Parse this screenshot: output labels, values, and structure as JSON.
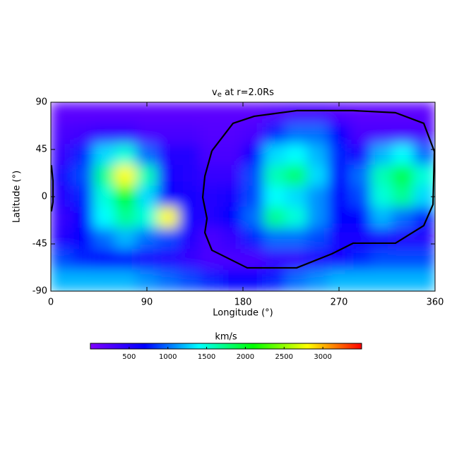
{
  "chart_data": {
    "type": "heatmap",
    "title": "v",
    "title_subscript": "e",
    "title_suffix": " at r=2.0Rs",
    "x_label": "Longitude (°)",
    "y_label": "Latitude (°)",
    "xlim": [
      0,
      360
    ],
    "ylim": [
      -90,
      90
    ],
    "xticks": [
      0,
      90,
      180,
      270,
      360
    ],
    "yticks": [
      -90,
      -45,
      0,
      45,
      90
    ],
    "x": [
      10,
      30,
      50,
      70,
      90,
      110,
      130,
      150,
      170,
      190,
      210,
      230,
      250,
      270,
      290,
      310,
      330,
      350
    ],
    "y": [
      80,
      60,
      40,
      20,
      0,
      -20,
      -40,
      -60,
      -80
    ],
    "z": [
      [
        200,
        200,
        200,
        200,
        200,
        200,
        200,
        200,
        200,
        200,
        250,
        300,
        300,
        250,
        200,
        200,
        200,
        200
      ],
      [
        300,
        350,
        400,
        400,
        300,
        300,
        300,
        250,
        250,
        300,
        800,
        1000,
        1000,
        700,
        300,
        300,
        300,
        300
      ],
      [
        400,
        800,
        1300,
        1500,
        1000,
        500,
        500,
        300,
        300,
        700,
        1300,
        1400,
        1200,
        800,
        600,
        1200,
        1400,
        1000
      ],
      [
        600,
        900,
        1700,
        2800,
        1600,
        600,
        500,
        400,
        400,
        900,
        1600,
        1800,
        1300,
        700,
        1000,
        1600,
        1900,
        1500
      ],
      [
        500,
        800,
        1500,
        2000,
        1300,
        700,
        600,
        500,
        600,
        900,
        1400,
        1300,
        1100,
        700,
        900,
        1500,
        1700,
        1300
      ],
      [
        400,
        700,
        1400,
        1700,
        1500,
        2800,
        600,
        500,
        700,
        1000,
        1700,
        1500,
        1100,
        700,
        700,
        1200,
        1000,
        800
      ],
      [
        500,
        700,
        1000,
        1200,
        1000,
        900,
        500,
        300,
        400,
        800,
        1000,
        1000,
        900,
        600,
        600,
        600,
        500,
        500
      ],
      [
        900,
        800,
        700,
        700,
        600,
        500,
        400,
        300,
        300,
        300,
        400,
        400,
        500,
        600,
        800,
        900,
        900,
        900
      ],
      [
        1200,
        1200,
        1200,
        1200,
        1100,
        1000,
        900,
        800,
        700,
        700,
        800,
        1000,
        1100,
        1200,
        1200,
        1200,
        1200,
        1200
      ]
    ],
    "clim": [
      0,
      3500
    ],
    "colormap": [
      "#7f00ff",
      "#0000ff",
      "#00ffff",
      "#00ff00",
      "#ffff00",
      "#ff0000"
    ],
    "colorbar_label": "km/s",
    "colorbar_ticks": [
      500,
      1000,
      1500,
      2000,
      2500,
      3000
    ],
    "contour_color": "#000000",
    "contours": [
      {
        "x": [
          150.9,
          170.7,
          190.6,
          230.3,
          283.2,
          322.9,
          349.4,
          359.4,
          358.1,
          349.4,
          322.9,
          283.2,
          263.4,
          230.3,
          184.0,
          150.9,
          144.3,
          146.3,
          142.3,
          144.3,
          150.9
        ],
        "y": [
          43.7,
          69.9,
          76.6,
          82.0,
          82.0,
          80.0,
          69.9,
          43.0,
          -7.4,
          -27.6,
          -44.3,
          -44.3,
          -54.4,
          -67.8,
          -67.8,
          -51.0,
          -34.2,
          -20.8,
          -0.6,
          19.5,
          43.7
        ]
      },
      {
        "x": [
          0.5,
          2.0,
          2.0,
          0.5
        ],
        "y": [
          30,
          15,
          -5,
          -14
        ]
      }
    ]
  }
}
